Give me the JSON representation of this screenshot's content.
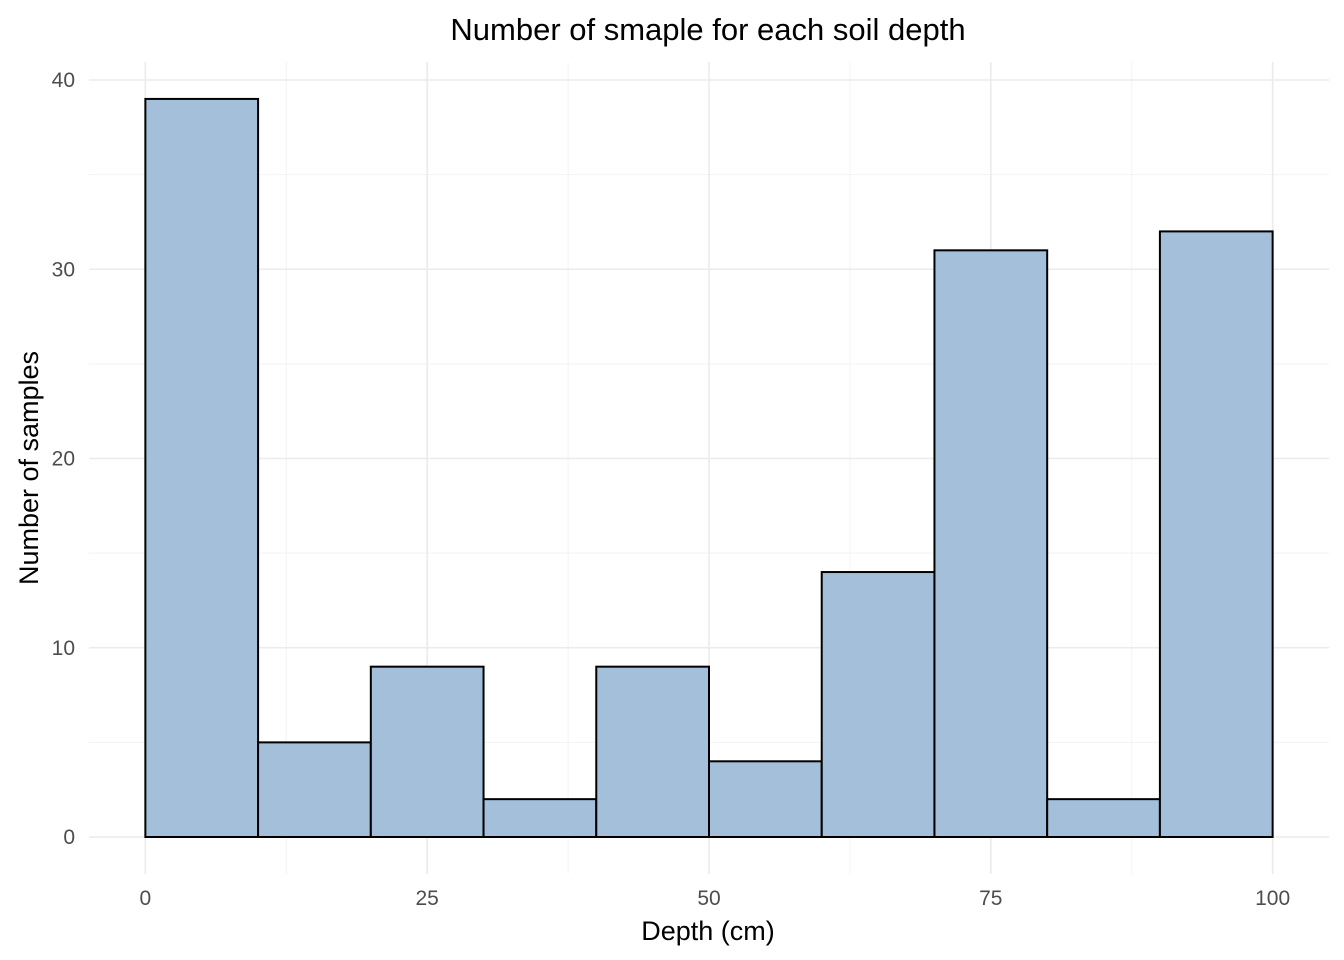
{
  "chart_data": {
    "type": "bar",
    "subtype": "histogram",
    "title": "Number of smaple for each soil depth",
    "xlabel": "Depth (cm)",
    "ylabel": "Number of samples",
    "bin_edges": [
      0,
      10,
      20,
      30,
      40,
      50,
      60,
      70,
      80,
      90,
      100
    ],
    "values": [
      39,
      5,
      9,
      2,
      9,
      4,
      14,
      31,
      2,
      32
    ],
    "xlim": [
      -5,
      105
    ],
    "ylim": [
      0,
      40
    ],
    "x_ticks": [
      0,
      25,
      50,
      75,
      100
    ],
    "x_tick_labels": [
      "0",
      "25",
      "50",
      "75",
      "100"
    ],
    "y_ticks": [
      0,
      10,
      20,
      30,
      40
    ],
    "y_tick_labels": [
      "0",
      "10",
      "20",
      "30",
      "40"
    ],
    "grid": true,
    "bar_fill": "#a3bfd9",
    "bar_outline": "#000000"
  }
}
